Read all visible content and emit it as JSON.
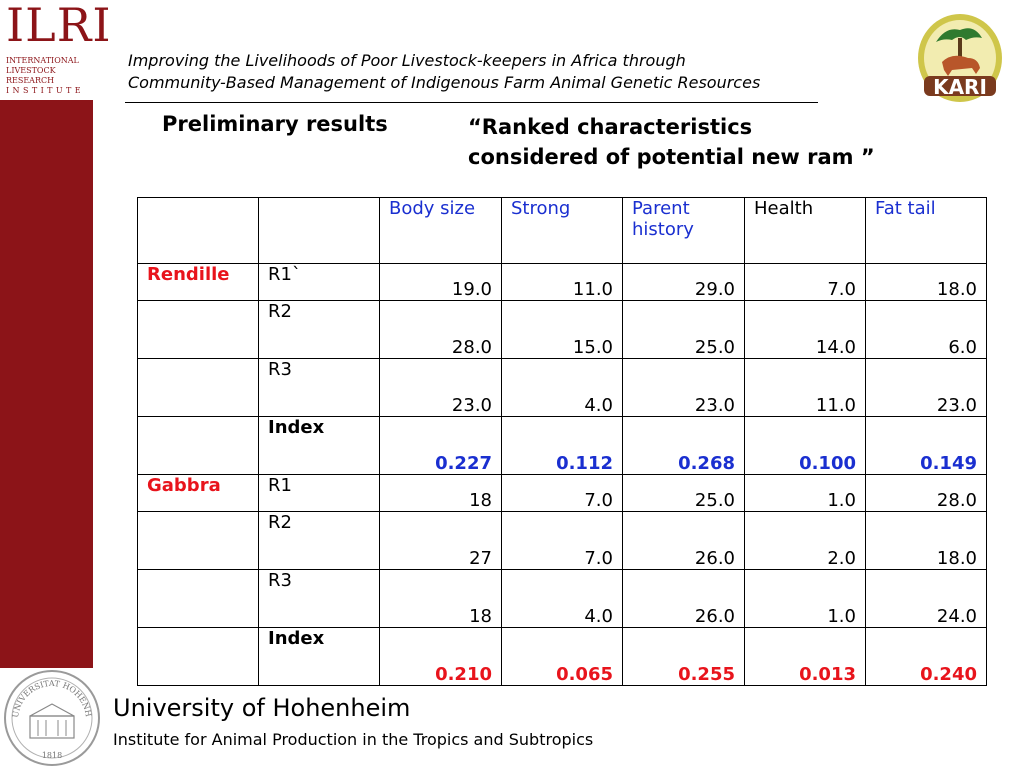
{
  "header": {
    "ilri_logo_text": "ILRI",
    "ilri_logo_line1": "INTERNATIONAL",
    "ilri_logo_line2": "LIVESTOCK RESEARCH",
    "ilri_logo_line3": "INSTITUTE",
    "kari_logo_text": "KARI",
    "subtitle_line1": "Improving the Livelihoods of Poor Livestock-keepers in Africa through",
    "subtitle_line2": "Community-Based Management of Indigenous Farm Animal Genetic Resources"
  },
  "section": {
    "left_title": "Preliminary results",
    "right_title_line1": "“Ranked characteristics",
    "right_title_line2": "considered of  potential new ram ”"
  },
  "table": {
    "columns": [
      "",
      "",
      "Body size",
      "Strong",
      "Parent history",
      "Health",
      "Fat tail"
    ],
    "column_parts": {
      "parent_line1": "Parent",
      "parent_line2": "history"
    },
    "groups": [
      {
        "name": "Rendille",
        "rows": [
          {
            "label": "R1`",
            "values": [
              "19.0",
              "11.0",
              "29.0",
              "7.0",
              "18.0"
            ]
          },
          {
            "label": "R2",
            "values": [
              "28.0",
              "15.0",
              "25.0",
              "14.0",
              "6.0"
            ]
          },
          {
            "label": "R3",
            "values": [
              "23.0",
              "4.0",
              "23.0",
              "11.0",
              "23.0"
            ]
          },
          {
            "label": "Index",
            "values": [
              "0.227",
              "0.112",
              "0.268",
              "0.100",
              "0.149"
            ]
          }
        ]
      },
      {
        "name": "Gabbra",
        "rows": [
          {
            "label": "R1",
            "values": [
              "18",
              "7.0",
              "25.0",
              "1.0",
              "28.0"
            ]
          },
          {
            "label": "R2",
            "values": [
              "27",
              "7.0",
              "26.0",
              "2.0",
              "18.0"
            ]
          },
          {
            "label": "R3",
            "values": [
              "18",
              "4.0",
              "26.0",
              "1.0",
              "24.0"
            ]
          },
          {
            "label": "Index",
            "values": [
              "0.210",
              "0.065",
              "0.255",
              "0.013",
              "0.240"
            ]
          }
        ]
      }
    ]
  },
  "footer": {
    "seal_text_top": "UNIVERSITAT HOHENHEIM",
    "seal_year": "1818",
    "university": "University of Hohenheim",
    "institute": "Institute for Animal Production in the Tropics and Subtropics"
  },
  "colors": {
    "sidebar": "#8c1418",
    "blue_text": "#1a2fd0",
    "red_text": "#e8141c"
  }
}
